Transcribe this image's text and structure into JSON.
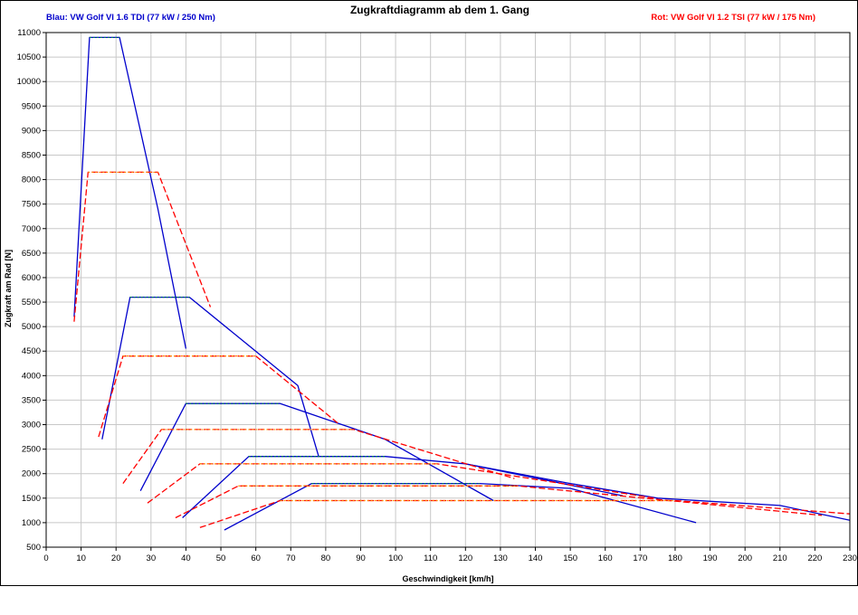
{
  "chart_data": {
    "type": "line",
    "title": "Zugkraftdiagramm ab dem 1. Gang",
    "legend_left": "Blau: VW Golf VI 1.6 TDI (77 kW / 250 Nm)",
    "legend_right": "Rot: VW Golf VI 1.2 TSI (77 kW / 175 Nm)",
    "xlabel": "Geschwindigkeit [km/h]",
    "ylabel": "Zugkraft am Rad [N]",
    "xlim": [
      0,
      230
    ],
    "ylim": [
      500,
      11000
    ],
    "xticks": [
      0,
      10,
      20,
      30,
      40,
      50,
      60,
      70,
      80,
      90,
      100,
      110,
      120,
      130,
      140,
      150,
      160,
      170,
      180,
      190,
      200,
      210,
      220,
      230
    ],
    "yticks": [
      500,
      1000,
      1500,
      2000,
      2500,
      3000,
      3500,
      4000,
      4500,
      5000,
      5500,
      6000,
      6500,
      7000,
      7500,
      8000,
      8500,
      9000,
      9500,
      10000,
      10500,
      11000
    ],
    "grid": true,
    "colors": {
      "blue": "#0000cc",
      "red": "#ff0000",
      "tdi_plateau": "#008c46",
      "tsi_plateau": "#ff8c00",
      "grid": "#c8c8c8"
    },
    "series": [
      {
        "name": "Blau: VW Golf VI 1.6 TDI (77 kW / 250 Nm)",
        "gears": [
          {
            "x": [
              8,
              12.4,
              21,
              32,
              40
            ],
            "y": [
              5200,
              10900,
              10900,
              7400,
              4550
            ]
          },
          {
            "x": [
              16,
              24,
              41,
              72,
              78
            ],
            "y": [
              2700,
              5600,
              5600,
              3800,
              2350
            ]
          },
          {
            "x": [
              27,
              40,
              67,
              97,
              128
            ],
            "y": [
              1650,
              3430,
              3430,
              2700,
              1450
            ]
          },
          {
            "x": [
              39,
              58,
              97,
              120,
              165
            ],
            "y": [
              1100,
              2350,
              2350,
              2200,
              1550
            ]
          },
          {
            "x": [
              51,
              76,
              124,
              150,
              186
            ],
            "y": [
              850,
              1800,
              1800,
              1700,
              1000
            ]
          },
          {
            "x": [
              120,
              150,
              175,
              210,
              230
            ],
            "y": [
              2200,
              1800,
              1500,
              1350,
              1050
            ]
          }
        ]
      },
      {
        "name": "Rot: VW Golf VI 1.2 TSI (77 kW / 175 Nm)",
        "gears": [
          {
            "x": [
              8,
              12,
              32,
              47
            ],
            "y": [
              5100,
              8150,
              8150,
              5400
            ]
          },
          {
            "x": [
              15,
              22,
              60,
              84
            ],
            "y": [
              2750,
              4400,
              4400,
              3000
            ]
          },
          {
            "x": [
              22,
              33,
              88,
              134
            ],
            "y": [
              1800,
              2900,
              2900,
              1900
            ]
          },
          {
            "x": [
              29,
              44,
              112,
              174
            ],
            "y": [
              1400,
              2200,
              2200,
              1500
            ]
          },
          {
            "x": [
              37,
              55,
              135,
              222
            ],
            "y": [
              1100,
              1750,
              1750,
              1150
            ]
          },
          {
            "x": [
              44,
              67,
              180,
              230
            ],
            "y": [
              900,
              1450,
              1450,
              1180
            ]
          }
        ]
      }
    ]
  }
}
